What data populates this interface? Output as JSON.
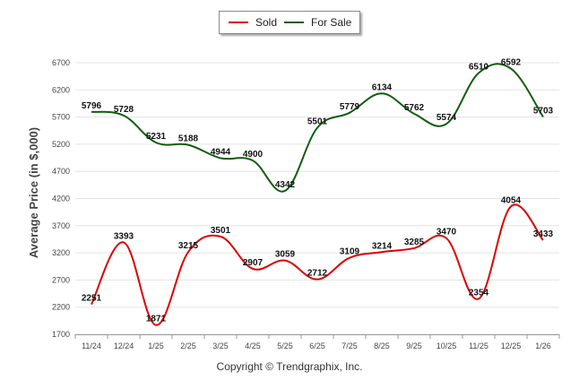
{
  "colors": {
    "sold": "#dd0000",
    "for_sale": "#0e5e0e",
    "grid": "#e3e3e3",
    "axis": "#999999",
    "text": "#333333"
  },
  "legend": {
    "sold_label": "Sold",
    "for_sale_label": "For Sale"
  },
  "footer": {
    "copyright": "Copyright © Trendgraphix, Inc."
  },
  "chart_data": {
    "type": "line",
    "title": "",
    "xlabel": "",
    "ylabel": "Average Price (in $,000)",
    "ylim": [
      1700,
      6700
    ],
    "yticks": [
      1700,
      2200,
      2700,
      3200,
      3700,
      4200,
      4700,
      5200,
      5700,
      6200,
      6700
    ],
    "categories": [
      "11/24",
      "12/24",
      "1/25",
      "2/25",
      "3/25",
      "4/25",
      "5/25",
      "6/25",
      "7/25",
      "8/25",
      "9/25",
      "10/25",
      "11/25",
      "12/25",
      "1/26"
    ],
    "series": [
      {
        "name": "Sold",
        "color": "#dd0000",
        "values": [
          2251,
          3393,
          1871,
          3215,
          3501,
          2907,
          3059,
          2712,
          3109,
          3214,
          3285,
          3470,
          2354,
          4054,
          3433
        ]
      },
      {
        "name": "For Sale",
        "color": "#0e5e0e",
        "values": [
          5796,
          5728,
          5231,
          5188,
          4944,
          4900,
          4342,
          5501,
          5779,
          6134,
          5762,
          5574,
          6510,
          6592,
          5703
        ]
      }
    ]
  }
}
